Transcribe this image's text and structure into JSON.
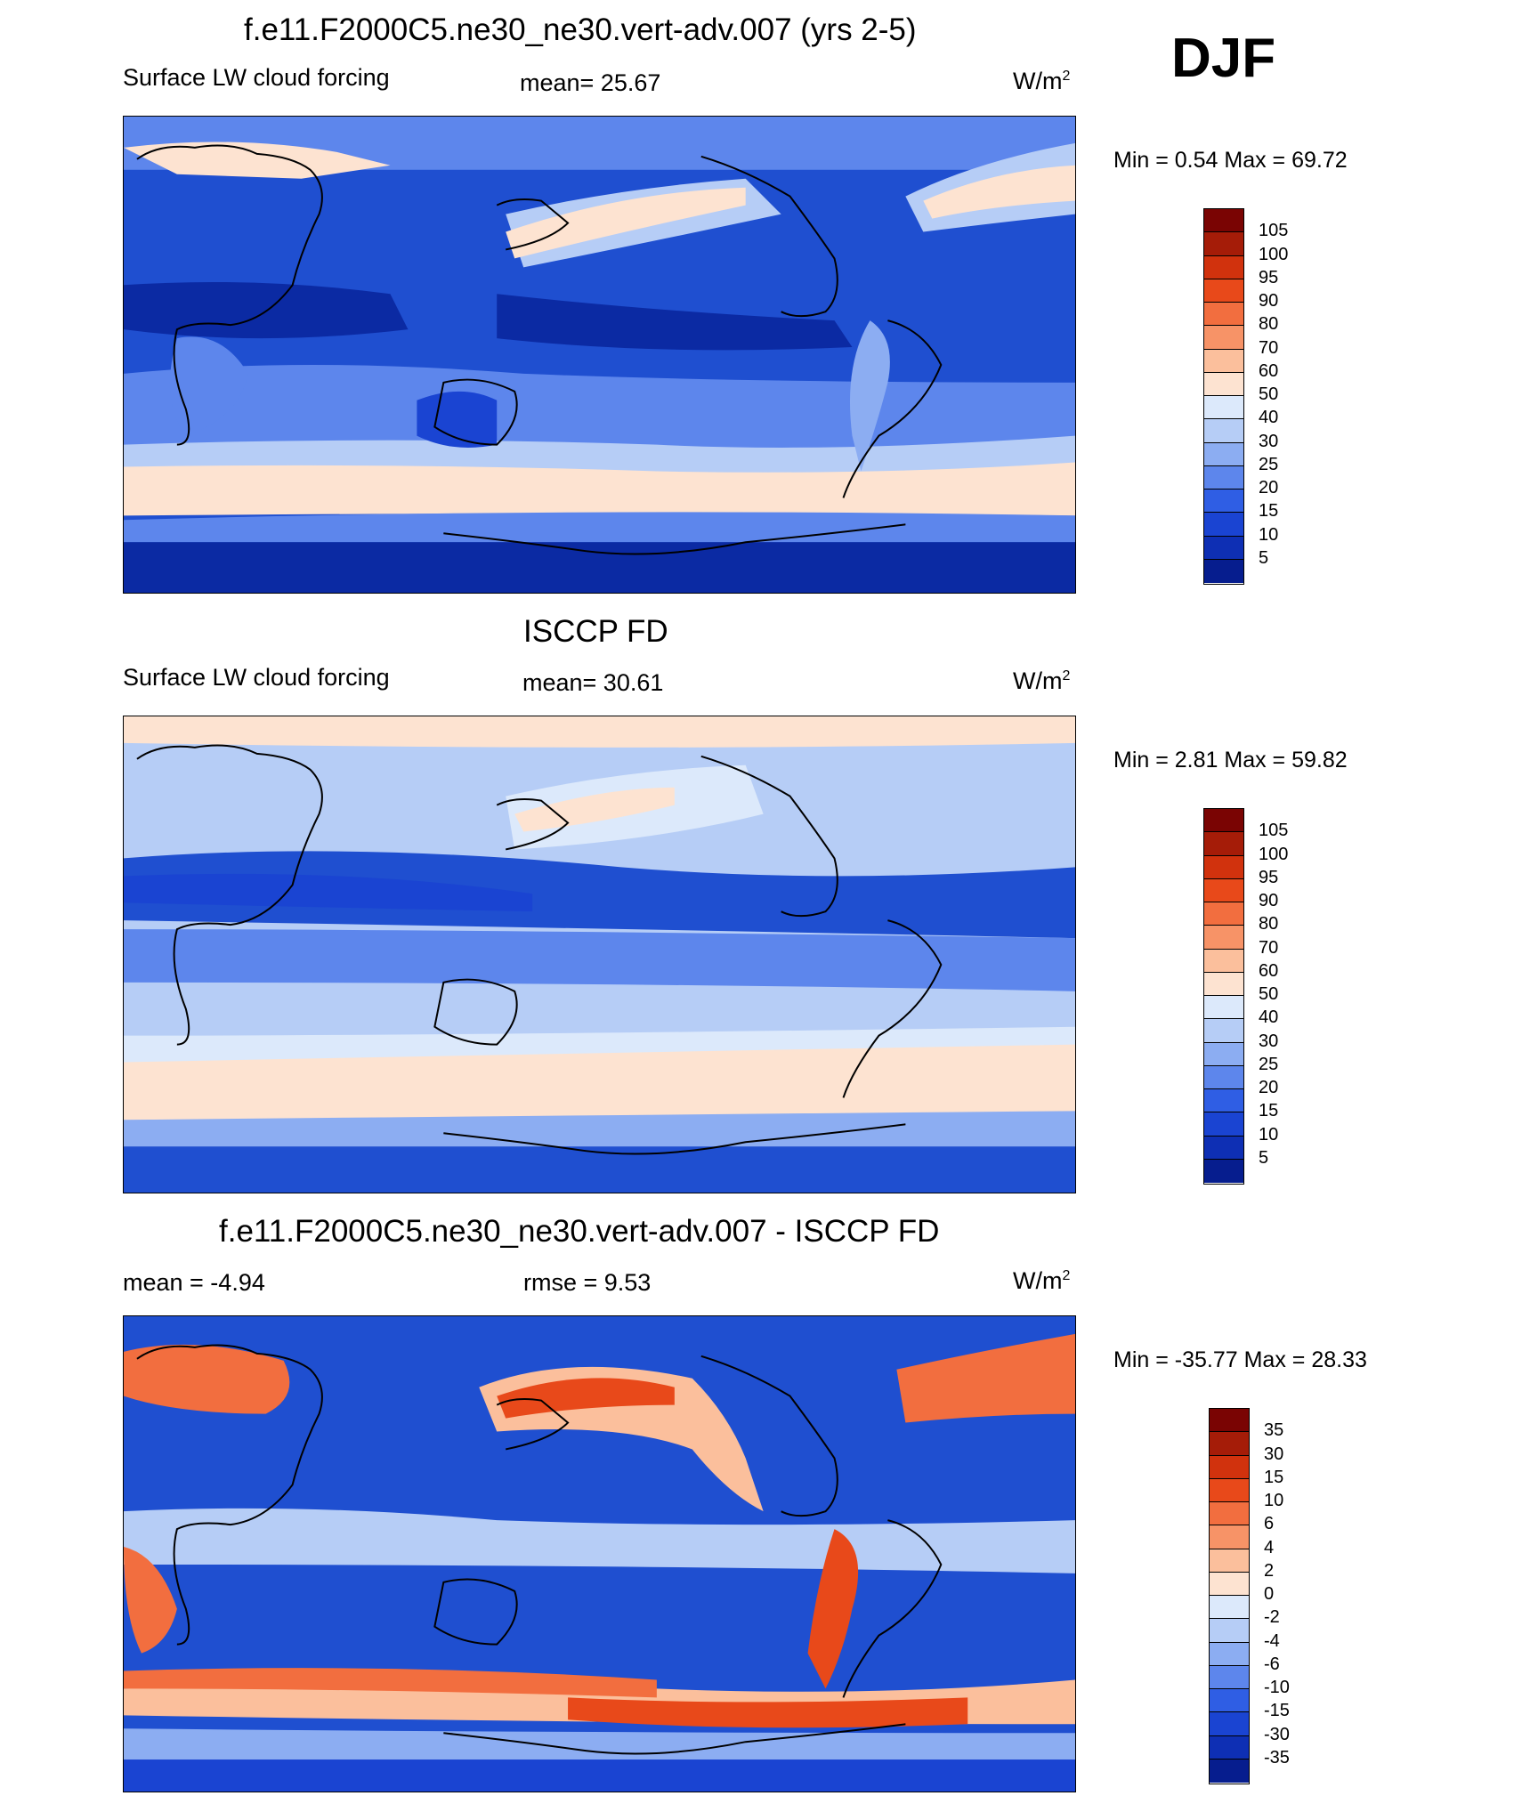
{
  "djf": "DJF",
  "panels": [
    {
      "title": "f.e11.F2000C5.ne30_ne30.vert-adv.007 (yrs 2-5)",
      "left": "Surface LW cloud forcing",
      "center": "mean=  25.67",
      "unit": "W/m",
      "unit_sup": "2",
      "minmax": "Min =   0.54 Max =  69.72",
      "levels": [
        "105",
        "100",
        "95",
        "90",
        "80",
        "70",
        "60",
        "50",
        "40",
        "30",
        "25",
        "20",
        "15",
        "10",
        "5"
      ]
    },
    {
      "title": "ISCCP FD",
      "left": "Surface LW cloud forcing",
      "center": "mean=  30.61",
      "unit": "W/m",
      "unit_sup": "2",
      "minmax": "Min =   2.81 Max =  59.82",
      "levels": [
        "105",
        "100",
        "95",
        "90",
        "80",
        "70",
        "60",
        "50",
        "40",
        "30",
        "25",
        "20",
        "15",
        "10",
        "5"
      ]
    },
    {
      "title": "f.e11.F2000C5.ne30_ne30.vert-adv.007 - ISCCP FD",
      "left": "mean =  -4.94",
      "center": "rmse =    9.53",
      "unit": "W/m",
      "unit_sup": "2",
      "minmax": "Min = -35.77 Max =  28.33",
      "levels": [
        "35",
        "30",
        "15",
        "10",
        "6",
        "4",
        "2",
        "0",
        "-2",
        "-4",
        "-6",
        "-10",
        "-15",
        "-30",
        "-35"
      ]
    }
  ],
  "colors": {
    "colorbar": [
      "#7a0403",
      "#a51c08",
      "#d1320d",
      "#e8491a",
      "#f26e3f",
      "#f79367",
      "#fbbf9c",
      "#fde3d1",
      "#dce9fb",
      "#b6cdf6",
      "#8cadf2",
      "#5d86ec",
      "#2f5ee4",
      "#1a44d2",
      "#0e2fb4",
      "#061d8e"
    ],
    "map_deep": "#0b2aa3",
    "map_mid": "#1f4fd0",
    "map_light": "#5d86ec",
    "map_pale": "#b6cdf6",
    "map_white": "#dce9fb",
    "map_peach": "#fde3d1",
    "map_orange": "#f26e3f"
  }
}
